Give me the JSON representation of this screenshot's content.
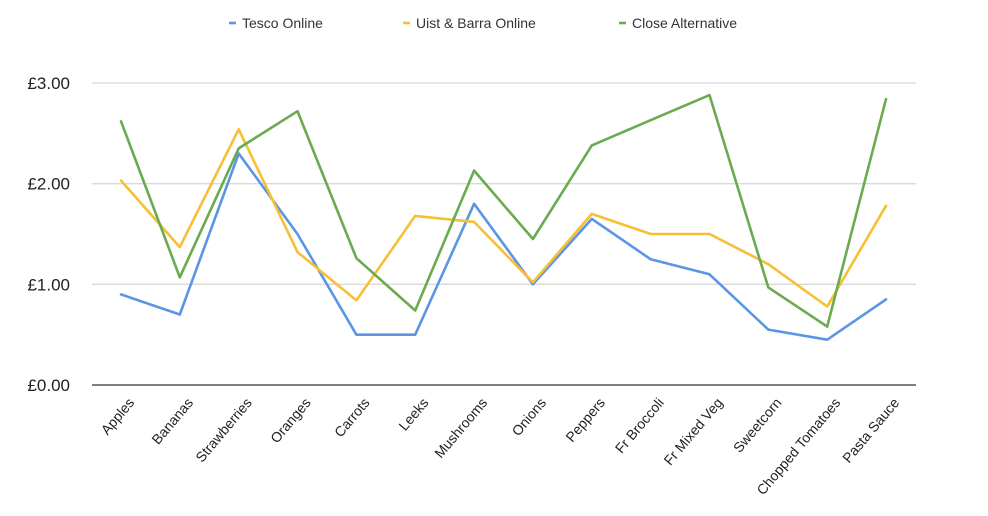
{
  "chart_data": {
    "type": "line",
    "title": "",
    "xlabel": "",
    "ylabel": "",
    "categories": [
      "Apples",
      "Bananas",
      "Strawberries",
      "Oranges",
      "Carrots",
      "Leeks",
      "Mushrooms",
      "Onions",
      "Peppers",
      "Fr Broccoli",
      "Fr Mixed Veg",
      "Sweetcorn",
      "Chopped Tomatoes",
      "Pasta Sauce"
    ],
    "series": [
      {
        "name": "Tesco Online",
        "color": "#5b95e5",
        "values": [
          0.9,
          0.7,
          2.3,
          1.5,
          0.5,
          0.5,
          1.8,
          1.0,
          1.65,
          1.25,
          1.1,
          0.55,
          0.45,
          0.85
        ]
      },
      {
        "name": "Uist & Barra Online",
        "color": "#f7c034",
        "values": [
          2.03,
          1.37,
          2.54,
          1.32,
          0.84,
          1.68,
          1.62,
          1.02,
          1.7,
          1.5,
          1.5,
          1.2,
          0.78,
          1.78
        ]
      },
      {
        "name": "Close Alternative",
        "color": "#6aab4f",
        "values": [
          2.62,
          1.07,
          2.35,
          2.72,
          1.26,
          0.74,
          2.13,
          1.45,
          2.38,
          2.63,
          2.88,
          0.97,
          0.58,
          2.84
        ]
      }
    ],
    "ylim": [
      0,
      3
    ],
    "yticks": [
      0,
      1,
      2,
      3
    ],
    "ytick_labels": [
      "£0.00",
      "£1.00",
      "£2.00",
      "£3.00"
    ],
    "grid": true,
    "legend_position": "top"
  }
}
